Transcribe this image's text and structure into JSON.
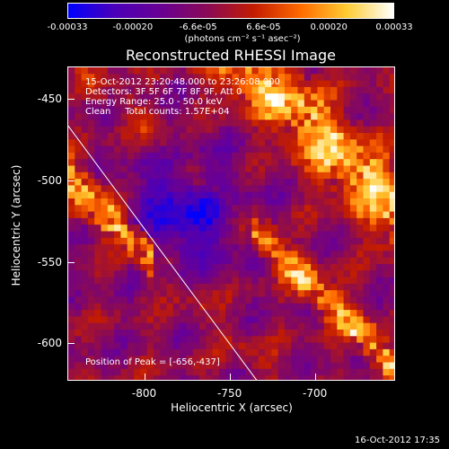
{
  "colorbar": {
    "ticks": [
      "-0.00033",
      "-0.00020",
      "-6.6e-05",
      "6.6e-05",
      "0.00020",
      "0.00033"
    ],
    "unit_label": "(photons cm⁻² s⁻¹ asec⁻²)",
    "colors": [
      "#0000ff",
      "#4b00b8",
      "#6a0093",
      "#8a0a55",
      "#c31c00",
      "#ff6a00",
      "#ffcc33",
      "#ffffff"
    ]
  },
  "chart_data": {
    "type": "heatmap",
    "title": "Reconstructed RHESSI Image",
    "xlabel": "Heliocentric X (arcsec)",
    "ylabel": "Heliocentric Y (arcsec)",
    "xlim": [
      -845,
      -653
    ],
    "ylim": [
      -623,
      -430
    ],
    "xticks": [
      -800,
      -750,
      -700
    ],
    "yticks": [
      -450,
      -500,
      -550,
      -600
    ],
    "value_range": [
      -0.00033,
      0.00033
    ],
    "limb_line": {
      "from": [
        -845,
        -466
      ],
      "to": [
        -734,
        -623
      ]
    },
    "peak": {
      "x": -656,
      "y": -437
    }
  },
  "info": {
    "time": "15-Oct-2012 23:20:48.000 to 23:26:08.000",
    "detectors": "Detectors: 3F 5F 6F 7F 8F 9F, Att 0",
    "energy": "Energy Range: 25.0 - 50.0 keV",
    "clean": "Clean     Total counts: 1.57E+04"
  },
  "peak_label": "Position of Peak = [-656,-437]",
  "timestamp": "16-Oct-2012 17:35"
}
